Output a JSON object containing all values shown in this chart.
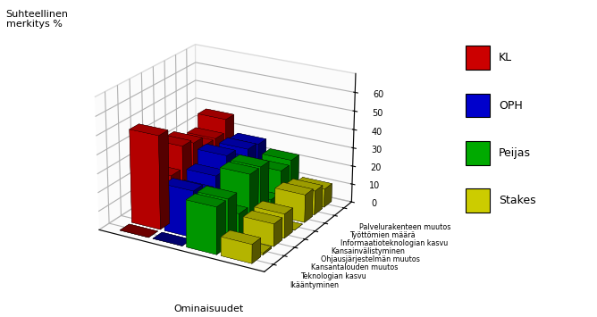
{
  "title_ylabel": "Suhteellinen\nmerkitys %",
  "xlabel": "Ominaisuudet",
  "categories": [
    "Ikääntyminen",
    "Teknologian kasvu",
    "Kansantalouden muutos",
    "Ohjausjärjestelmän muutos",
    "Kansainvälistyminen",
    "Informaatioteknologian kasvu",
    "Työttömien määrä",
    "Palvelurakenteen muutos"
  ],
  "series_labels": [
    "KL",
    "OPH",
    "Peijas",
    "Stakes"
  ],
  "series_colors": [
    "#cc0000",
    "#0000cc",
    "#00aa00",
    "#cccc00"
  ],
  "data": {
    "KL": [
      0,
      50,
      25,
      37,
      35,
      30,
      30,
      37
    ],
    "OPH": [
      0,
      25,
      20,
      25,
      32,
      25,
      28,
      27
    ],
    "Peijas": [
      25,
      25,
      13,
      30,
      30,
      8,
      20,
      22
    ],
    "Stakes": [
      10,
      1,
      12,
      13,
      0,
      15,
      13,
      10
    ]
  },
  "ylim": [
    0,
    70
  ],
  "yticks": [
    0,
    10,
    20,
    30,
    40,
    50,
    60
  ],
  "background_color": "#ffffff",
  "grid_color": "#bbbbbb",
  "elev": 22,
  "azim": -60
}
